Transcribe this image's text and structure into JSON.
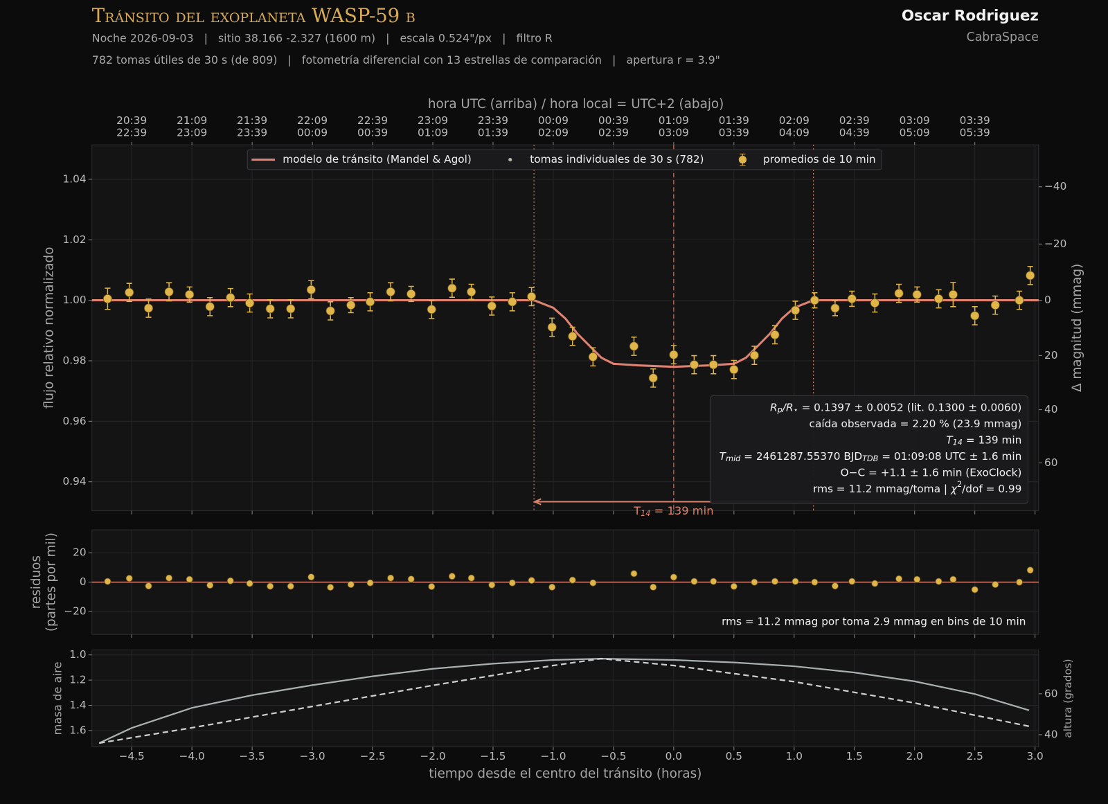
{
  "header": {
    "title": "Tránsito del exoplaneta WASP-59 b",
    "line1": "Noche 2026-09-03   |   sitio 38.166 -2.327 (1600 m)   |   escala 0.524\"/px   |   filtro R",
    "line2": "782 tomas útiles de 30 s (de 809)   |   fotometría diferencial con 13 estrellas de comparación   |   apertura r = 3.9\"",
    "author": "Oscar Rodriguez",
    "org": "CabraSpace"
  },
  "chart_data": [
    {
      "type": "line",
      "ylabel": "flujo relativo normalizado",
      "y2label": "Δ magnitud (mmag)",
      "y2_scale": "magnitude",
      "top_xlabel": "hora UTC (arriba)   /   hora local = UTC+2 (abajo)",
      "xlim": [
        -4.83,
        3.03
      ],
      "ylim": [
        0.9304,
        1.0514
      ],
      "grid": true,
      "xticks": [
        -4.5,
        -4.0,
        -3.5,
        -3.0,
        -2.5,
        -2.0,
        -1.5,
        -1.0,
        -0.5,
        0.0,
        0.5,
        1.0,
        1.5,
        2.0,
        2.5,
        3.0
      ],
      "yticks": [
        {
          "value": 0.94,
          "label": "0.94"
        },
        {
          "value": 0.96,
          "label": "0.96"
        },
        {
          "value": 0.98,
          "label": "0.98"
        },
        {
          "value": 1.0,
          "label": "1.00"
        },
        {
          "value": 1.02,
          "label": "1.02"
        },
        {
          "value": 1.04,
          "label": "1.04"
        }
      ],
      "y2ticks": [
        {
          "value": -40,
          "label": "−40"
        },
        {
          "value": -20,
          "label": "−20"
        },
        {
          "value": 0,
          "label": "0"
        },
        {
          "value": 20,
          "label": "20"
        },
        {
          "value": 40,
          "label": "40"
        },
        {
          "value": 60,
          "label": "60"
        }
      ],
      "top_xticks": [
        {
          "value": -4.5,
          "label": "20:39",
          "label_local": "22:39"
        },
        {
          "value": -4.0,
          "label": "21:09",
          "label_local": "23:09"
        },
        {
          "value": -3.5,
          "label": "21:39",
          "label_local": "23:39"
        },
        {
          "value": -3.0,
          "label": "22:09",
          "label_local": "00:09"
        },
        {
          "value": -2.5,
          "label": "22:39",
          "label_local": "00:39"
        },
        {
          "value": -2.0,
          "label": "23:09",
          "label_local": "01:09"
        },
        {
          "value": -1.5,
          "label": "23:39",
          "label_local": "01:39"
        },
        {
          "value": -1.0,
          "label": "00:09",
          "label_local": "02:09"
        },
        {
          "value": -0.5,
          "label": "00:39",
          "label_local": "02:39"
        },
        {
          "value": 0.0,
          "label": "01:09",
          "label_local": "03:09"
        },
        {
          "value": 0.5,
          "label": "01:39",
          "label_local": "03:39"
        },
        {
          "value": 1.0,
          "label": "02:09",
          "label_local": "04:09"
        },
        {
          "value": 1.5,
          "label": "02:39",
          "label_local": "04:39"
        },
        {
          "value": 2.0,
          "label": "03:09",
          "label_local": "05:09"
        },
        {
          "value": 2.5,
          "label": "03:39",
          "label_local": "05:39"
        }
      ],
      "series": [
        {
          "name": "modelo de tránsito (Mandel & Agol)",
          "color": "#e08272",
          "kind": "line",
          "x": [
            -4.83,
            -1.16,
            -1.0,
            -0.9,
            -0.8,
            -0.7,
            -0.6,
            -0.5,
            -0.3,
            0.0,
            0.3,
            0.5,
            0.6,
            0.7,
            0.8,
            0.9,
            1.0,
            1.16,
            3.03
          ],
          "values": [
            1.0,
            1.0,
            0.9975,
            0.994,
            0.989,
            0.985,
            0.981,
            0.979,
            0.9785,
            0.978,
            0.9785,
            0.979,
            0.981,
            0.985,
            0.989,
            0.994,
            0.9975,
            1.0,
            1.0
          ]
        },
        {
          "name": "tomas individuales de 30 s (782)",
          "color": "#b5b3aa",
          "kind": "dots"
        },
        {
          "name": "promedios de 10 min",
          "color": "#e0b64a",
          "kind": "errorbar",
          "x": [
            -4.7,
            -4.52,
            -4.36,
            -4.19,
            -4.02,
            -3.85,
            -3.68,
            -3.52,
            -3.35,
            -3.18,
            -3.01,
            -2.85,
            -2.68,
            -2.52,
            -2.35,
            -2.18,
            -2.01,
            -1.84,
            -1.68,
            -1.51,
            -1.34,
            -1.18,
            -1.01,
            -0.84,
            -0.67,
            -0.33,
            -0.17,
            0.0,
            0.17,
            0.33,
            0.5,
            0.67,
            0.84,
            1.01,
            1.17,
            1.34,
            1.48,
            1.67,
            1.87,
            2.02,
            2.2,
            2.32,
            2.5,
            2.67,
            2.87,
            2.96
          ],
          "values": [
            1.0005,
            1.0026,
            0.9974,
            1.0028,
            1.0019,
            0.9979,
            1.0009,
            0.9991,
            0.9972,
            0.9972,
            1.0035,
            0.9965,
            0.9984,
            0.9995,
            1.0028,
            1.0021,
            0.997,
            1.004,
            1.0028,
            0.9981,
            0.9995,
            1.0012,
            0.9911,
            0.9881,
            0.9813,
            0.9848,
            0.9743,
            0.982,
            0.9787,
            0.9787,
            0.9771,
            0.9818,
            0.9886,
            0.9967,
            1.0,
            0.9974,
            1.0005,
            0.9991,
            1.0023,
            1.0019,
            1.0005,
            1.0019,
            0.9949,
            0.9984,
            1.0,
            1.0082
          ],
          "errors": [
            0.0035,
            0.003,
            0.003,
            0.003,
            0.0025,
            0.003,
            0.003,
            0.003,
            0.003,
            0.003,
            0.003,
            0.003,
            0.0025,
            0.003,
            0.003,
            0.0025,
            0.003,
            0.003,
            0.0025,
            0.003,
            0.003,
            0.003,
            0.003,
            0.003,
            0.003,
            0.003,
            0.003,
            0.003,
            0.003,
            0.003,
            0.003,
            0.003,
            0.003,
            0.003,
            0.0025,
            0.0025,
            0.0025,
            0.003,
            0.003,
            0.0025,
            0.003,
            0.004,
            0.003,
            0.003,
            0.003,
            0.003
          ]
        }
      ],
      "vlines": [
        {
          "value": -1.16,
          "style": "dotted"
        },
        {
          "value": 0.0,
          "style": "dashed"
        },
        {
          "value": 1.16,
          "style": "dotted"
        }
      ],
      "arrow": {
        "from": 1.16,
        "to": -1.16,
        "y": 0.9334,
        "label": [
          "T",
          {
            "text": "14",
            "style": "sub"
          },
          " = 139 min"
        ]
      },
      "info": [
        [
          {
            "text": "R",
            "style": "it"
          },
          {
            "text": "p",
            "style": "sub"
          },
          {
            "text": "/R",
            "style": "it"
          },
          {
            "text": "⋆",
            "style": "sub"
          },
          " = 0.1397 ± 0.0052    (lit. 0.1300 ± 0.0060)"
        ],
        [
          "caída observada = 2.20 %  (23.9 mmag)"
        ],
        [
          {
            "text": "T",
            "style": "it"
          },
          {
            "text": "14",
            "style": "sub"
          },
          " = 139 min"
        ],
        [
          {
            "text": "T",
            "style": "it"
          },
          {
            "text": "mid",
            "style": "sub"
          },
          " = 2461287.55370 BJD",
          {
            "text": "TDB",
            "style": "sub"
          },
          " = 01:09:08 UTC ± 1.6 min"
        ],
        [
          "O−C = +1.1 ± 1.6 min  (ExoClock)"
        ],
        [
          "rms = 11.2 mmag/toma   |   ",
          {
            "text": "χ",
            "style": "it"
          },
          {
            "text": "2",
            "style": "sup"
          },
          "/dof = 0.99"
        ]
      ]
    },
    {
      "type": "scatter",
      "ylabel": [
        "residuos",
        "(partes por mil)"
      ],
      "xlim": [
        -4.83,
        3.03
      ],
      "ylim": [
        -35.6,
        35.6
      ],
      "grid": true,
      "reference_line": 0,
      "xticks": [
        -4.5,
        -4.0,
        -3.5,
        -3.0,
        -2.5,
        -2.0,
        -1.5,
        -1.0,
        -0.5,
        0.0,
        0.5,
        1.0,
        1.5,
        2.0,
        2.5,
        3.0
      ],
      "yticks": [
        {
          "value": -20,
          "label": "−20"
        },
        0,
        20
      ],
      "note": "rms = 11.2 mmag por toma    2.9 mmag en bins de 10 min",
      "series": [
        {
          "color": "#e0b64a",
          "x": [
            -4.7,
            -4.52,
            -4.36,
            -4.19,
            -4.02,
            -3.85,
            -3.68,
            -3.52,
            -3.35,
            -3.18,
            -3.01,
            -2.85,
            -2.68,
            -2.52,
            -2.35,
            -2.18,
            -2.01,
            -1.84,
            -1.68,
            -1.51,
            -1.34,
            -1.18,
            -1.01,
            -0.84,
            -0.67,
            -0.33,
            -0.17,
            0.0,
            0.17,
            0.33,
            0.5,
            0.67,
            0.84,
            1.01,
            1.17,
            1.34,
            1.48,
            1.67,
            1.87,
            2.02,
            2.2,
            2.32,
            2.5,
            2.67,
            2.87,
            2.96
          ],
          "values": [
            0.5,
            2.6,
            -2.6,
            2.8,
            1.9,
            -2.1,
            0.9,
            -0.9,
            -2.8,
            -2.8,
            3.5,
            -3.5,
            -1.6,
            -0.5,
            2.8,
            2.1,
            -3.0,
            4.0,
            2.8,
            -1.9,
            -0.5,
            1.2,
            -3.4,
            1.4,
            -0.5,
            5.8,
            -3.4,
            3.4,
            0.5,
            0.5,
            -2.9,
            0.0,
            0.5,
            0.5,
            0.0,
            -2.6,
            0.5,
            -0.9,
            2.3,
            1.9,
            0.5,
            1.9,
            -5.1,
            -1.6,
            0.0,
            8.2
          ]
        }
      ]
    },
    {
      "type": "line",
      "ylabel": "masa de aire",
      "y2label": "altura (grados)",
      "xlabel": "tiempo desde el centro del tránsito   (horas)",
      "xlim": [
        -4.83,
        3.03
      ],
      "ylim": [
        1.729,
        0.961
      ],
      "y2lim": [
        34.1,
        81.4
      ],
      "grid": true,
      "xticks": [
        {
          "value": -4.5,
          "label": "−4.5"
        },
        {
          "value": -4.0,
          "label": "−4.0"
        },
        {
          "value": -3.5,
          "label": "−3.5"
        },
        {
          "value": -3.0,
          "label": "−3.0"
        },
        {
          "value": -2.5,
          "label": "−2.5"
        },
        {
          "value": -2.0,
          "label": "−2.0"
        },
        {
          "value": -1.5,
          "label": "−1.5"
        },
        {
          "value": -1.0,
          "label": "−1.0"
        },
        {
          "value": -0.5,
          "label": "−0.5"
        },
        {
          "value": 0.0,
          "label": "0.0"
        },
        {
          "value": 0.5,
          "label": "0.5"
        },
        {
          "value": 1.0,
          "label": "1.0"
        },
        {
          "value": 1.5,
          "label": "1.5"
        },
        {
          "value": 2.0,
          "label": "2.0"
        },
        {
          "value": 2.5,
          "label": "2.5"
        },
        {
          "value": 3.0,
          "label": "3.0"
        }
      ],
      "yticks": [
        {
          "value": 1.0,
          "label": "1.0"
        },
        {
          "value": 1.2,
          "label": "1.2"
        },
        {
          "value": 1.4,
          "label": "1.4"
        },
        {
          "value": 1.6,
          "label": "1.6"
        }
      ],
      "y2ticks": [
        40,
        60
      ],
      "series": [
        {
          "color": "#a9b0b0",
          "dash": false,
          "x": [
            -4.77,
            -4.5,
            -4.0,
            -3.5,
            -3.0,
            -2.5,
            -2.0,
            -1.5,
            -1.0,
            -0.6,
            0.0,
            0.5,
            1.0,
            1.5,
            2.0,
            2.5,
            2.95
          ],
          "values": [
            1.7,
            1.58,
            1.42,
            1.32,
            1.24,
            1.17,
            1.11,
            1.07,
            1.04,
            1.03,
            1.04,
            1.06,
            1.09,
            1.14,
            1.21,
            1.31,
            1.44
          ]
        },
        {
          "color": "#cfcfcf",
          "dash": true,
          "axis": "y2",
          "x": [
            -4.77,
            -4.0,
            -3.0,
            -2.0,
            -1.0,
            -0.6,
            0.0,
            1.0,
            2.0,
            2.95
          ],
          "values": [
            35.9,
            43.4,
            53.8,
            64.1,
            73.8,
            77.2,
            73.8,
            65.9,
            55.5,
            44.1
          ]
        }
      ]
    }
  ]
}
